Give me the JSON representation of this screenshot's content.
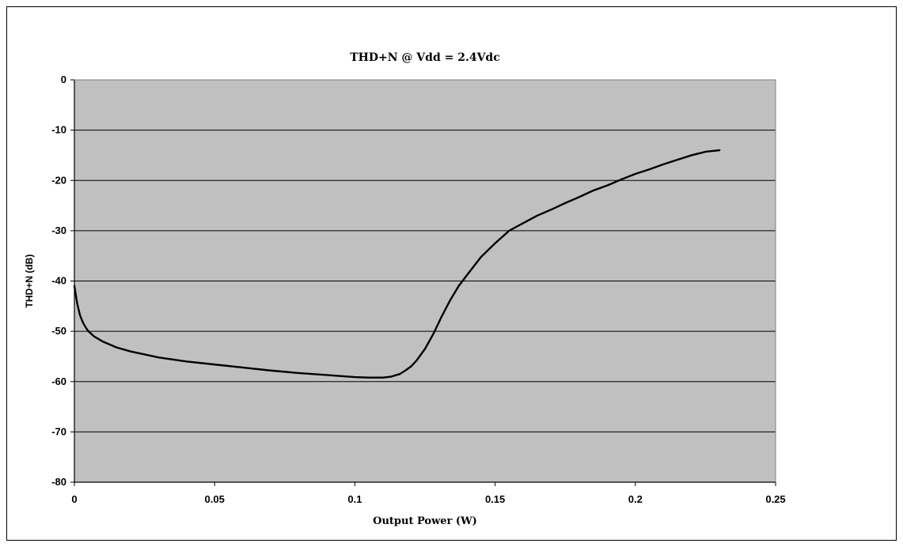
{
  "chart_data": {
    "type": "line",
    "title": "THD+N @ Vdd = 2.4Vdc",
    "xlabel": "Output Power (W)",
    "ylabel": "THD+N (dB)",
    "xlim": [
      0,
      0.25
    ],
    "ylim": [
      -80,
      0
    ],
    "xticks": [
      0,
      0.05,
      0.1,
      0.15,
      0.2,
      0.25
    ],
    "xtick_labels": [
      "0",
      "0.05",
      "0.1",
      "0.15",
      "0.2",
      "0.25"
    ],
    "yticks": [
      0,
      -10,
      -20,
      -30,
      -40,
      -50,
      -60,
      -70,
      -80
    ],
    "ytick_labels": [
      "0",
      "-10",
      "-20",
      "-30",
      "-40",
      "-50",
      "-60",
      "-70",
      "-80"
    ],
    "grid": "horizontal",
    "legend": "none",
    "plot_background": "#c0c0c0",
    "line_color": "#000000",
    "series": [
      {
        "x": [
          0,
          0.001,
          0.002,
          0.003,
          0.004,
          0.005,
          0.007,
          0.01,
          0.015,
          0.02,
          0.03,
          0.04,
          0.05,
          0.06,
          0.07,
          0.08,
          0.09,
          0.1,
          0.105,
          0.11,
          0.113,
          0.116,
          0.118,
          0.12,
          0.122,
          0.125,
          0.128,
          0.131,
          0.134,
          0.137,
          0.14,
          0.145,
          0.15,
          0.155,
          0.16,
          0.165,
          0.17,
          0.175,
          0.18,
          0.185,
          0.19,
          0.195,
          0.2,
          0.205,
          0.21,
          0.215,
          0.22,
          0.225,
          0.23
        ],
        "y": [
          -41,
          -44.5,
          -46.8,
          -48.2,
          -49.2,
          -50,
          -51,
          -52,
          -53.2,
          -54,
          -55.2,
          -56,
          -56.6,
          -57.2,
          -57.8,
          -58.3,
          -58.7,
          -59.1,
          -59.2,
          -59.2,
          -59,
          -58.5,
          -57.8,
          -57,
          -55.8,
          -53.5,
          -50.5,
          -47,
          -43.8,
          -41,
          -38.8,
          -35.2,
          -32.5,
          -30,
          -28.5,
          -27,
          -25.8,
          -24.5,
          -23.3,
          -22,
          -21,
          -19.8,
          -18.7,
          -17.8,
          -16.8,
          -15.9,
          -15,
          -14.3,
          -14
        ]
      }
    ]
  }
}
